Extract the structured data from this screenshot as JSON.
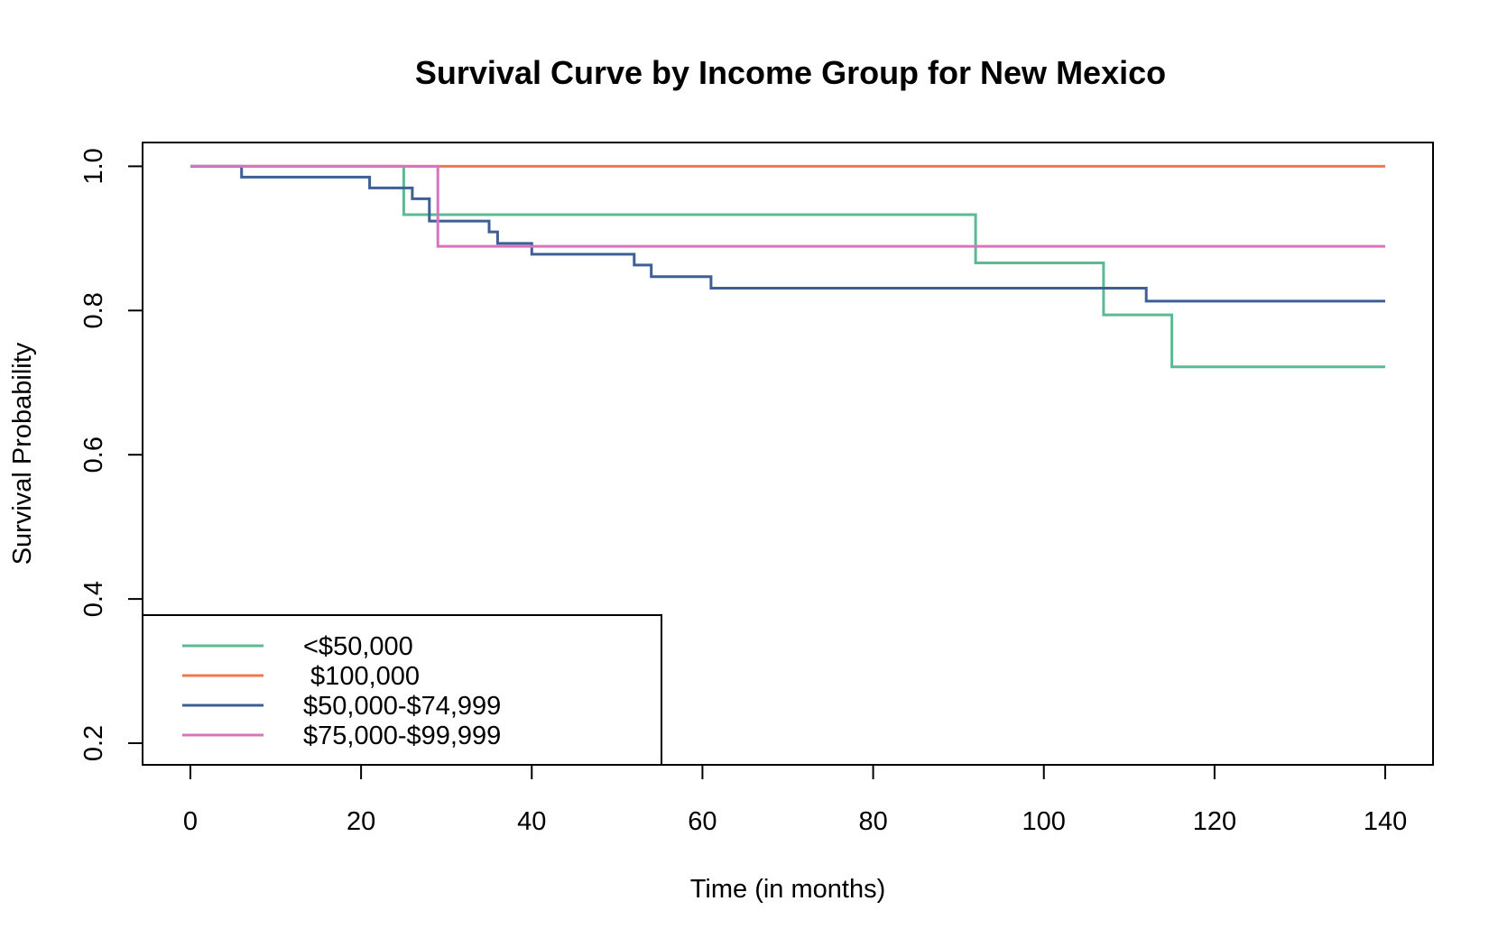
{
  "chart_data": {
    "type": "line",
    "step": true,
    "title": "Survival Curve by Income Group for New Mexico",
    "xlabel": "Time (in months)",
    "ylabel": "Survival Probability",
    "xlim": [
      -5.6,
      145.6
    ],
    "ylim": [
      0.17,
      1.033
    ],
    "xticks": [
      0,
      20,
      40,
      60,
      80,
      100,
      120,
      140
    ],
    "yticks": [
      0.2,
      0.4,
      0.6,
      0.8,
      1.0
    ],
    "ytick_labels": [
      "0.2",
      "0.4",
      "0.6",
      "0.8",
      "1.0"
    ],
    "grid": false,
    "legend_position": "bottom-left",
    "series": [
      {
        "name": "<$50,000",
        "color": "#5bb994",
        "points": [
          [
            0,
            1.0
          ],
          [
            25,
            0.933
          ],
          [
            92,
            0.866
          ],
          [
            107,
            0.794
          ],
          [
            115,
            0.722
          ],
          [
            140,
            0.722
          ]
        ]
      },
      {
        "name": " $100,000",
        "color": "#f0784f",
        "points": [
          [
            0,
            1.0
          ],
          [
            140,
            1.0
          ]
        ]
      },
      {
        "name": "$50,000-$74,999",
        "color": "#3d5f96",
        "points": [
          [
            0,
            1.0
          ],
          [
            6,
            0.985
          ],
          [
            21,
            0.97
          ],
          [
            26,
            0.955
          ],
          [
            28,
            0.924
          ],
          [
            35,
            0.909
          ],
          [
            36,
            0.893
          ],
          [
            40,
            0.878
          ],
          [
            52,
            0.863
          ],
          [
            54,
            0.847
          ],
          [
            61,
            0.831
          ],
          [
            112,
            0.813
          ],
          [
            140,
            0.813
          ]
        ]
      },
      {
        "name": "$75,000-$99,999",
        "color": "#d874bf",
        "points": [
          [
            0,
            1.0
          ],
          [
            29,
            0.889
          ],
          [
            140,
            0.889
          ]
        ]
      }
    ]
  }
}
